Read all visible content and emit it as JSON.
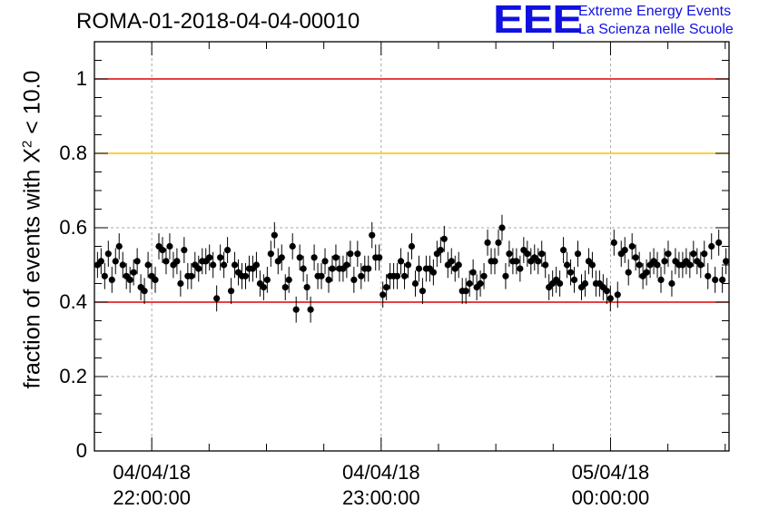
{
  "header": {
    "run_title": "ROMA-01-2018-04-04-00010",
    "logo_mark": "EEE",
    "logo_line1": "Extreme Energy Events",
    "logo_line2": "La Scienza nelle Scuole"
  },
  "colors": {
    "points": "#000000",
    "red_line": "#e00000",
    "yellow_line": "#ffc000",
    "logo": "#1010e0",
    "grid": "#aaaaaa"
  },
  "chart_data": {
    "type": "scatter",
    "title": "ROMA-01-2018-04-04-00010",
    "ylabel_prefix": "fraction of events with X",
    "ylabel_sup": "2",
    "ylabel_suffix": " < 10.0",
    "xlabel": "",
    "ylim": [
      0,
      1.1
    ],
    "yticks": [
      "0",
      "0.2",
      "0.4",
      "0.6",
      "0.8",
      "1"
    ],
    "xticks": [
      {
        "date": "04/04/18",
        "time": "22:00:00"
      },
      {
        "date": "04/04/18",
        "time": "23:00:00"
      },
      {
        "date": "05/04/18",
        "time": "00:00:00"
      }
    ],
    "xlim_minutes": [
      -15,
      151
    ],
    "x_unit": "minutes after 04/04/18 22:00:00",
    "grid": true,
    "hlines": [
      {
        "y": 1.0,
        "color": "#e00000"
      },
      {
        "y": 0.8,
        "color": "#ffc000"
      },
      {
        "y": 0.4,
        "color": "#e00000"
      }
    ],
    "error": 0.035,
    "y": [
      0.5,
      0.51,
      0.47,
      0.53,
      0.46,
      0.51,
      0.55,
      0.5,
      0.47,
      0.46,
      0.48,
      0.51,
      0.44,
      0.43,
      0.5,
      0.47,
      0.46,
      0.55,
      0.54,
      0.51,
      0.55,
      0.5,
      0.51,
      0.45,
      0.54,
      0.47,
      0.47,
      0.5,
      0.49,
      0.51,
      0.51,
      0.52,
      0.5,
      0.41,
      0.52,
      0.5,
      0.54,
      0.43,
      0.5,
      0.48,
      0.47,
      0.47,
      0.49,
      0.49,
      0.5,
      0.45,
      0.44,
      0.46,
      0.53,
      0.58,
      0.51,
      0.52,
      0.44,
      0.46,
      0.55,
      0.38,
      0.52,
      0.49,
      0.44,
      0.38,
      0.52,
      0.47,
      0.47,
      0.51,
      0.46,
      0.49,
      0.52,
      0.49,
      0.49,
      0.5,
      0.53,
      0.46,
      0.53,
      0.47,
      0.49,
      0.49,
      0.58,
      0.52,
      0.52,
      0.42,
      0.44,
      0.47,
      0.47,
      0.47,
      0.51,
      0.47,
      0.5,
      0.55,
      0.45,
      0.49,
      0.43,
      0.49,
      0.49,
      0.48,
      0.53,
      0.54,
      0.57,
      0.5,
      0.51,
      0.49,
      0.5,
      0.43,
      0.43,
      0.45,
      0.48,
      0.44,
      0.45,
      0.47,
      0.56,
      0.51,
      0.51,
      0.56,
      0.6,
      0.47,
      0.53,
      0.51,
      0.51,
      0.49,
      0.54,
      0.53,
      0.51,
      0.52,
      0.51,
      0.53,
      0.5,
      0.44,
      0.45,
      0.46,
      0.45,
      0.54,
      0.5,
      0.48,
      0.46,
      0.53,
      0.44,
      0.45,
      0.51,
      0.5,
      0.45,
      0.45,
      0.44,
      0.43,
      0.41,
      0.56,
      0.42,
      0.53,
      0.54,
      0.48,
      0.55,
      0.52,
      0.5,
      0.47,
      0.48,
      0.5,
      0.51,
      0.5,
      0.46,
      0.51,
      0.53,
      0.45,
      0.51,
      0.5,
      0.5,
      0.51,
      0.5,
      0.53,
      0.51,
      0.5,
      0.53,
      0.47,
      0.55,
      0.46,
      0.56,
      0.46,
      0.51
    ]
  }
}
